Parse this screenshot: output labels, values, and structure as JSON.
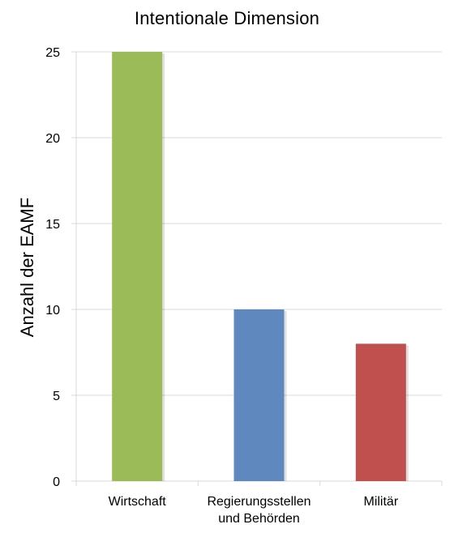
{
  "chart_data": {
    "type": "bar",
    "title": "Intentionale Dimension",
    "xlabel": "",
    "ylabel": "Anzahl der EAMF",
    "ylim": [
      0,
      25
    ],
    "yticks": [
      0,
      5,
      10,
      15,
      20,
      25
    ],
    "grid": true,
    "legend": "none",
    "categories": [
      [
        "Wirtschaft"
      ],
      [
        "Regierungsstellen",
        "und Behörden"
      ],
      [
        "Militär"
      ]
    ],
    "values": [
      25,
      10,
      8
    ],
    "colors": [
      "#9BBB59",
      "#5F88BF",
      "#C0504D"
    ],
    "axis_color": "#D9D9D9",
    "grid_color": "#D9D9D9"
  }
}
